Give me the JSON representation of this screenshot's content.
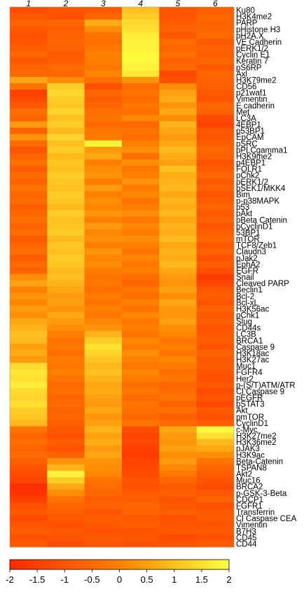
{
  "chart_data": {
    "type": "heatmap",
    "columns": [
      "1",
      "2",
      "3",
      "4",
      "5",
      "6"
    ],
    "rows": [
      "Ku80",
      "H3K4me2",
      "PARP",
      "pHistone H3",
      "pH2A.X",
      "VE Cadherin",
      "pERK1/2",
      "Cyclin E1",
      "Keratin 7",
      "pS6RP",
      "Axl",
      "H3K79me2",
      "CD56",
      "p21waf1",
      "Vimentin",
      "E cadherin",
      "Met",
      "LC3A",
      "4EBP1",
      "p53BP1",
      "EpCAM",
      "pSRC",
      "pPLCgamma1",
      "H3K9me2",
      "p4EBP1",
      "FOLR1",
      "pChk2",
      "pERK1/2",
      "pSEK1/MKK4",
      "Bim",
      "p-p38MAPK",
      "p53",
      "pAkt",
      "pBeta Catenin",
      "pCyclinD1",
      "53BP1",
      "mTOR",
      "TCF8/Zeb1",
      "Claudn3",
      "pJak2",
      "EphA2",
      "EGFR",
      "Snail",
      "Cleaved PARP",
      "Beclin1",
      "Bcl-2",
      "Bcl-xL",
      "H3K56ac",
      "pChk1",
      "Slug",
      "CD44s",
      "LC3B",
      "BRCA1",
      "Caspase 9",
      "H3K18ac",
      "H3K27ac",
      "Muc1",
      "FGFR4",
      "Her2",
      "p-(S/T)ATM/ATR",
      "Cl Caspase 9",
      "pEGFR",
      "pSTAT3",
      "Akt",
      "pmTOR",
      "CyclinD1",
      "c-Myc",
      "H3K27me2",
      "H3K36me2",
      "pJAK3",
      "H3K9ac",
      "Beta-Catenin",
      "TSPAN8",
      "Akt2",
      "Muc16",
      "BRCA2",
      "p-GSK-3-Beta",
      "CDCP1",
      "FGFR1",
      "Transferrin",
      "Cl Caspase CEA",
      "Vimentin",
      "B7H3",
      "CD45",
      "CD44"
    ],
    "values": [
      [
        -1.2,
        -1.0,
        -0.9,
        1.0,
        -1.0,
        -0.8
      ],
      [
        -0.9,
        -1.1,
        -0.6,
        1.2,
        -1.0,
        -0.6
      ],
      [
        -0.7,
        -0.6,
        0.7,
        1.4,
        -0.8,
        -0.7
      ],
      [
        -0.9,
        -0.8,
        0.2,
        1.5,
        -0.7,
        -0.6
      ],
      [
        -1.1,
        -0.7,
        -0.3,
        1.7,
        -0.9,
        -0.5
      ],
      [
        -1.0,
        -0.6,
        -0.4,
        1.8,
        -0.5,
        -0.9
      ],
      [
        -0.8,
        -0.7,
        -0.2,
        1.8,
        -0.6,
        -0.7
      ],
      [
        -0.6,
        -0.9,
        0.0,
        1.9,
        -0.4,
        -0.8
      ],
      [
        -0.9,
        -0.8,
        -0.1,
        1.9,
        -0.7,
        -0.6
      ],
      [
        -0.7,
        -0.5,
        -0.2,
        1.8,
        -0.6,
        -0.9
      ],
      [
        -0.5,
        -0.6,
        0.1,
        1.6,
        -1.3,
        -0.6
      ],
      [
        0.6,
        0.2,
        -0.4,
        0.3,
        -1.1,
        -0.7
      ],
      [
        -0.3,
        1.2,
        -1.1,
        -0.5,
        0.2,
        -0.8
      ],
      [
        -1.5,
        1.4,
        -0.6,
        -0.3,
        0.5,
        -0.9
      ],
      [
        -1.3,
        1.2,
        -0.8,
        -0.5,
        0.7,
        -1.0
      ],
      [
        -0.9,
        1.1,
        -0.6,
        -0.2,
        0.3,
        -0.6
      ],
      [
        -0.4,
        1.3,
        -0.4,
        -0.4,
        0.6,
        -0.7
      ],
      [
        -0.6,
        1.0,
        -0.3,
        0.1,
        0.2,
        -1.2
      ],
      [
        0.4,
        1.2,
        -0.5,
        -0.6,
        0.8,
        -1.4
      ],
      [
        -0.7,
        0.9,
        -0.2,
        -0.3,
        0.6,
        -0.9
      ],
      [
        0.3,
        1.3,
        -0.1,
        -0.5,
        0.4,
        -1.0
      ],
      [
        -0.5,
        1.0,
        1.8,
        0.0,
        0.6,
        -0.8
      ],
      [
        -1.0,
        1.2,
        0.4,
        0.2,
        0.9,
        -0.6
      ],
      [
        -0.6,
        0.9,
        0.6,
        -0.4,
        0.7,
        -0.7
      ],
      [
        -0.4,
        1.1,
        0.0,
        0.2,
        0.5,
        -1.0
      ],
      [
        -0.8,
        1.0,
        0.2,
        -0.2,
        1.0,
        -0.8
      ],
      [
        -0.5,
        1.2,
        0.3,
        0.0,
        0.7,
        -0.6
      ],
      [
        -0.7,
        1.1,
        -0.1,
        0.3,
        0.8,
        -0.9
      ],
      [
        -0.3,
        1.0,
        0.4,
        -0.1,
        0.9,
        -0.7
      ],
      [
        -0.6,
        1.2,
        0.0,
        0.1,
        0.6,
        -1.0
      ],
      [
        -0.5,
        1.1,
        0.2,
        -0.3,
        0.8,
        -0.8
      ],
      [
        -0.8,
        0.9,
        0.1,
        0.0,
        0.7,
        -0.6
      ],
      [
        -0.6,
        1.2,
        0.3,
        0.2,
        0.9,
        -0.9
      ],
      [
        -0.4,
        1.0,
        0.0,
        -0.2,
        0.6,
        -0.7
      ],
      [
        -0.7,
        1.1,
        0.4,
        0.1,
        0.8,
        -1.0
      ],
      [
        -0.5,
        1.2,
        0.1,
        -0.1,
        0.7,
        -0.8
      ],
      [
        -0.9,
        0.9,
        0.2,
        0.2,
        0.9,
        -0.6
      ],
      [
        -0.6,
        1.1,
        0.0,
        0.0,
        0.6,
        -0.9
      ],
      [
        -0.4,
        1.0,
        0.3,
        -0.3,
        0.8,
        -0.7
      ],
      [
        -0.8,
        1.2,
        0.1,
        0.1,
        0.7,
        -1.0
      ],
      [
        -0.5,
        1.1,
        0.2,
        -0.2,
        0.9,
        -0.8
      ],
      [
        -0.7,
        0.9,
        -0.1,
        0.0,
        0.6,
        -1.1
      ],
      [
        0.2,
        1.0,
        -0.3,
        -0.5,
        0.4,
        -1.6
      ],
      [
        0.5,
        0.8,
        -0.2,
        -0.6,
        0.3,
        -1.3
      ],
      [
        0.0,
        0.6,
        -0.4,
        -0.2,
        0.5,
        -0.9
      ],
      [
        0.3,
        0.4,
        -0.1,
        -0.4,
        0.2,
        -0.8
      ],
      [
        0.1,
        0.5,
        -0.3,
        0.0,
        0.6,
        -1.0
      ],
      [
        0.4,
        0.3,
        0.0,
        -0.3,
        0.4,
        -0.7
      ],
      [
        0.2,
        0.6,
        -0.2,
        0.1,
        0.3,
        -0.9
      ],
      [
        0.6,
        0.4,
        0.1,
        -0.2,
        0.5,
        -0.8
      ],
      [
        0.8,
        0.2,
        0.3,
        0.0,
        0.2,
        -1.0
      ],
      [
        1.0,
        0.0,
        0.8,
        -0.3,
        0.1,
        -0.9
      ],
      [
        0.9,
        -0.3,
        1.2,
        0.1,
        -0.2,
        -0.8
      ],
      [
        0.5,
        -0.2,
        1.5,
        -0.1,
        0.0,
        -1.0
      ],
      [
        0.7,
        -0.4,
        1.3,
        0.2,
        -0.3,
        -0.7
      ],
      [
        0.4,
        -0.1,
        1.1,
        0.0,
        0.1,
        -0.9
      ],
      [
        1.4,
        -0.2,
        0.9,
        -0.2,
        -0.1,
        -0.8
      ],
      [
        1.6,
        0.0,
        1.0,
        0.1,
        -0.4,
        -1.0
      ],
      [
        1.5,
        -0.3,
        0.8,
        -0.1,
        -0.2,
        -1.1
      ],
      [
        1.7,
        -0.5,
        0.6,
        -0.4,
        -0.6,
        -0.9
      ],
      [
        1.4,
        -0.4,
        0.7,
        -0.2,
        -0.5,
        -1.2
      ],
      [
        1.3,
        -0.6,
        0.5,
        -0.5,
        -0.3,
        -1.0
      ],
      [
        1.5,
        -0.5,
        0.4,
        -0.3,
        -0.7,
        -1.3
      ],
      [
        1.2,
        -0.7,
        0.6,
        -0.4,
        -0.4,
        -0.9
      ],
      [
        1.1,
        -0.6,
        0.3,
        -0.6,
        -0.8,
        -1.1
      ],
      [
        0.9,
        -0.8,
        0.5,
        -0.3,
        -0.5,
        -0.8
      ],
      [
        -0.3,
        -0.9,
        0.8,
        -1.2,
        0.6,
        1.9
      ],
      [
        -0.6,
        -1.1,
        0.5,
        -1.4,
        0.4,
        1.5
      ],
      [
        -0.4,
        -0.8,
        0.7,
        -1.3,
        0.3,
        0.9
      ],
      [
        -0.7,
        -1.0,
        0.4,
        -1.5,
        0.5,
        0.6
      ],
      [
        -0.5,
        -0.7,
        0.6,
        -1.6,
        0.2,
        0.2
      ],
      [
        -0.8,
        0.3,
        0.3,
        -1.4,
        0.4,
        -0.3
      ],
      [
        -1.0,
        0.8,
        0.2,
        -1.3,
        0.1,
        -0.6
      ],
      [
        -1.2,
        1.8,
        0.1,
        -1.2,
        -0.2,
        -0.8
      ],
      [
        -1.4,
        1.2,
        -0.3,
        -1.0,
        -0.6,
        -1.0
      ],
      [
        -1.9,
        0.6,
        -0.5,
        -1.1,
        -0.9,
        -1.2
      ],
      [
        -1.8,
        0.2,
        -0.6,
        -0.9,
        -0.8,
        -0.9
      ],
      [
        -1.5,
        -0.3,
        -0.8,
        -0.8,
        -1.0,
        -0.7
      ],
      [
        -1.1,
        -0.6,
        -0.7,
        -0.6,
        -0.9,
        -1.1
      ],
      [
        -0.9,
        -0.8,
        -1.0,
        -0.7,
        -0.8,
        -0.9
      ],
      [
        -1.3,
        -0.9,
        -0.8,
        -0.9,
        -1.1,
        -0.8
      ],
      [
        -1.0,
        -1.1,
        -0.9,
        -0.8,
        -1.0,
        -1.0
      ],
      [
        -0.8,
        -0.9,
        -1.1,
        -1.0,
        -0.9,
        -0.9
      ],
      [
        -1.1,
        -1.0,
        -0.9,
        -0.9,
        -1.2,
        -1.1
      ],
      [
        -0.9,
        -1.2,
        -1.0,
        -1.1,
        -1.0,
        -0.9
      ]
    ],
    "colorbar": {
      "min": -2,
      "max": 2,
      "ticks": [
        -2,
        -1.5,
        -1,
        -0.5,
        0,
        0.5,
        1,
        1.5,
        2
      ],
      "tick_labels": [
        "-2",
        "-1.5",
        "-1",
        "-0.5",
        "0",
        "0.5",
        "1",
        "1.5",
        "2"
      ],
      "colors": [
        "#ff2a00",
        "#ff8000",
        "#ffff40"
      ]
    },
    "title": "",
    "xlabel": "",
    "ylabel": "",
    "legend": "bottom"
  }
}
